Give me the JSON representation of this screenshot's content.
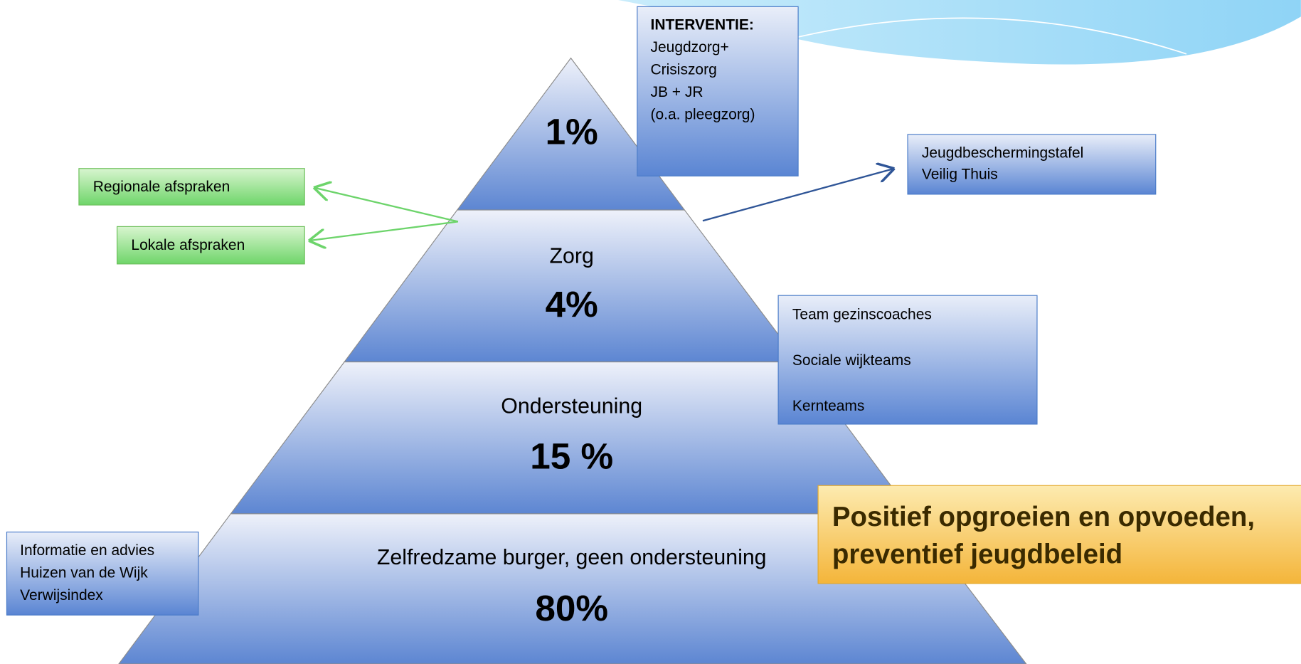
{
  "pyramid": {
    "levels": [
      {
        "percent": "1%"
      },
      {
        "label": "Zorg",
        "percent": "4%"
      },
      {
        "label": "Ondersteuning",
        "percent": "15 %"
      },
      {
        "label": "Zelfredzame burger, geen ondersteuning",
        "percent": "80%"
      }
    ]
  },
  "intervention": {
    "title": "INTERVENTIE:",
    "lines": [
      "Jeugdzorg+",
      "Crisiszorg",
      "JB + JR",
      "(o.a. pleegzorg)"
    ]
  },
  "agreements": [
    "Regionale afspraken",
    "Lokale afspraken"
  ],
  "protection": [
    "Jeugdbeschermingstafel",
    "Veilig Thuis"
  ],
  "teams": [
    "Team gezinscoaches",
    "Sociale wijkteams",
    "Kernteams"
  ],
  "information": [
    "Informatie en advies",
    "Huizen van de Wijk",
    "Verwijsindex"
  ],
  "banner": [
    "Positief opgroeien en opvoeden,",
    "preventief jeugdbeleid"
  ]
}
